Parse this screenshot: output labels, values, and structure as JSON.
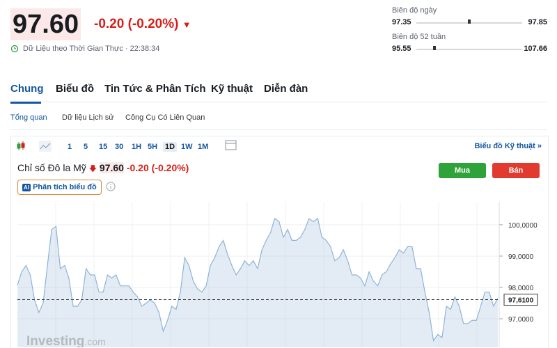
{
  "quote": {
    "price": "97.60",
    "change": "-0.20 (-0.20%)",
    "status": "Dữ Liệu theo Thời Gian Thực · 22:38:34"
  },
  "ranges": [
    {
      "label": "Biên độ ngày",
      "low": 97.35,
      "high": 97.85
    },
    {
      "label": "Biên độ 52 tuần",
      "low": 95.55,
      "high": 107.66
    }
  ],
  "tabs": [
    "Chung",
    "Biểu đồ",
    "Tin Tức & Phân Tích",
    "Kỹ thuật",
    "Diễn đàn"
  ],
  "subtabs": [
    "Tổng quan",
    "Dữ liệu Lịch sử",
    "Công Cụ Có Liên Quan"
  ],
  "toolbar": {
    "intervals": [
      "1",
      "5",
      "15",
      "30",
      "1H",
      "5H",
      "1D",
      "1W",
      "1M"
    ],
    "active_index": 6,
    "link": "Biểu đồ Kỹ thuật »"
  },
  "legend": {
    "name": "Chỉ số Đô la Mỹ",
    "price": "97.60",
    "change": "-0.20",
    "change_pct": "(-0.20%)"
  },
  "buttons": {
    "buy": "Mua",
    "sell": "Bán"
  },
  "ai_button": "Phân tích biểu đồ",
  "watermark": {
    "brand": "Investing",
    "suffix": ".com"
  },
  "chart_data": {
    "type": "area",
    "color": "#8fb3d6",
    "values": [
      98.07,
      98.5,
      98.7,
      98.4,
      97.6,
      97.2,
      97.5,
      98.7,
      99.85,
      99.95,
      98.6,
      98.7,
      98.3,
      97.4,
      97.4,
      97.6,
      98.6,
      98.4,
      98.4,
      97.85,
      97.85,
      98.4,
      98.3,
      98.4,
      98.05,
      98.05,
      98.05,
      97.85,
      97.7,
      97.4,
      97.5,
      97.6,
      97.5,
      97.2,
      96.6,
      96.95,
      97.4,
      97.3,
      97.85,
      98.95,
      98.7,
      98.2,
      97.95,
      97.85,
      98.05,
      98.7,
      98.95,
      99.3,
      99.5,
      99.05,
      98.7,
      98.4,
      98.6,
      98.85,
      98.7,
      98.85,
      98.6,
      99.2,
      99.5,
      99.75,
      100.2,
      100.1,
      99.6,
      99.85,
      99.5,
      99.5,
      99.6,
      99.85,
      100.2,
      100.1,
      100.2,
      99.6,
      99.5,
      99.3,
      98.85,
      98.95,
      99.2,
      98.85,
      98.4,
      98.4,
      98.3,
      98.05,
      98.5,
      98.2,
      98.05,
      98.4,
      98.5,
      98.75,
      98.95,
      99.2,
      99.1,
      99.3,
      99.3,
      98.6,
      98.6,
      97.85,
      97.2,
      96.3,
      96.5,
      96.4,
      97.4,
      97.3,
      97.7,
      97.4,
      96.85,
      96.85,
      96.95,
      96.95,
      97.4,
      97.85,
      97.85,
      97.4,
      97.65
    ],
    "ylim": [
      96.09,
      100.62
    ],
    "yticks": [
      {
        "value": 97,
        "label": "97,0000"
      },
      {
        "value": 98,
        "label": "98,0000"
      },
      {
        "value": 99,
        "label": "99,0000"
      },
      {
        "value": 100,
        "label": "100,0000"
      }
    ],
    "last": {
      "value": 97.61,
      "label": "97,6100"
    },
    "grid": true
  }
}
